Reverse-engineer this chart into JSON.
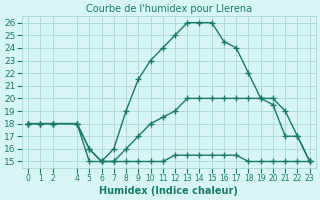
{
  "title": "Courbe de l'humidex pour Llerena",
  "xlabel": "Humidex (Indice chaleur)",
  "bg_color": "#d8f5f5",
  "grid_color": "#a0d0d0",
  "line_color": "#1a7a6a",
  "xlim": [
    -0.5,
    23.5
  ],
  "ylim": [
    14.5,
    26.5
  ],
  "yticks": [
    15,
    16,
    17,
    18,
    19,
    20,
    21,
    22,
    23,
    24,
    25,
    26
  ],
  "line1_x": [
    0,
    1,
    2,
    4,
    5,
    6,
    7,
    8,
    9,
    10,
    11,
    12,
    13,
    14,
    15,
    16,
    17,
    18,
    19,
    20,
    21,
    22,
    23
  ],
  "line1_y": [
    18,
    18,
    18,
    18,
    15,
    15,
    16,
    19,
    21.5,
    23,
    24,
    25,
    26,
    26,
    26,
    24.5,
    24,
    22,
    20,
    19.5,
    17,
    17,
    15
  ],
  "line2_x": [
    0,
    1,
    2,
    4,
    5,
    6,
    7,
    8,
    9,
    10,
    11,
    12,
    13,
    14,
    15,
    16,
    17,
    18,
    19,
    20,
    21,
    22,
    23
  ],
  "line2_y": [
    18,
    18,
    18,
    18,
    16,
    15,
    15,
    16,
    17,
    18,
    18.5,
    19,
    20,
    20,
    20,
    20,
    20,
    20,
    20,
    20,
    19,
    17,
    15
  ],
  "line3_x": [
    0,
    1,
    2,
    4,
    5,
    6,
    7,
    8,
    9,
    10,
    11,
    12,
    13,
    14,
    15,
    16,
    17,
    18,
    19,
    20,
    21,
    22,
    23
  ],
  "line3_y": [
    18,
    18,
    18,
    18,
    16,
    15,
    15,
    15,
    15,
    15,
    15,
    15.5,
    15.5,
    15.5,
    15.5,
    15.5,
    15.5,
    15,
    15,
    15,
    15,
    15,
    15
  ],
  "xtick_positions": [
    0,
    1,
    2,
    4,
    5,
    6,
    7,
    8,
    9,
    10,
    11,
    12,
    13,
    14,
    15,
    16,
    17,
    18,
    19,
    20,
    21,
    22,
    23
  ],
  "xtick_labels": [
    "0",
    "1",
    "2",
    "4",
    "5",
    "6",
    "7",
    "8",
    "9",
    "10",
    "11",
    "12",
    "13",
    "14",
    "15",
    "16",
    "17",
    "18",
    "19",
    "20",
    "21",
    "22",
    "23"
  ]
}
